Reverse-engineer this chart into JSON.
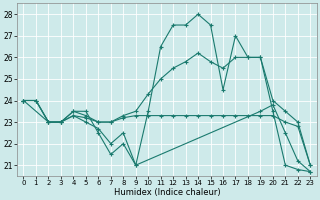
{
  "title": "",
  "xlabel": "Humidex (Indice chaleur)",
  "ylabel": "",
  "bg_color": "#ceeaea",
  "line_color": "#1a7a6e",
  "grid_color": "#ffffff",
  "xlim": [
    -0.5,
    23.5
  ],
  "ylim": [
    20.5,
    28.5
  ],
  "xticks": [
    0,
    1,
    2,
    3,
    4,
    5,
    6,
    7,
    8,
    9,
    10,
    11,
    12,
    13,
    14,
    15,
    16,
    17,
    18,
    19,
    20,
    21,
    22,
    23
  ],
  "yticks": [
    21,
    22,
    23,
    24,
    25,
    26,
    27,
    28
  ],
  "series": [
    {
      "x": [
        0,
        1,
        2,
        3,
        4,
        5,
        6,
        7,
        8,
        9,
        10,
        11,
        12,
        13,
        14,
        15,
        16,
        17,
        18,
        19,
        20,
        21,
        22,
        23
      ],
      "y": [
        24.0,
        24.0,
        23.0,
        23.0,
        23.5,
        23.5,
        22.5,
        21.5,
        22.0,
        21.0,
        23.5,
        26.5,
        27.5,
        27.5,
        28.0,
        27.5,
        24.5,
        27.0,
        26.0,
        26.0,
        23.5,
        21.0,
        20.8,
        20.7
      ]
    },
    {
      "x": [
        0,
        1,
        2,
        3,
        4,
        5,
        6,
        7,
        8,
        9,
        10,
        11,
        12,
        13,
        14,
        15,
        16,
        17,
        18,
        19,
        20,
        21,
        22,
        23
      ],
      "y": [
        24.0,
        24.0,
        23.0,
        23.0,
        23.5,
        23.3,
        23.0,
        23.0,
        23.3,
        23.5,
        24.3,
        25.0,
        25.5,
        25.8,
        26.2,
        25.8,
        25.5,
        26.0,
        26.0,
        26.0,
        24.0,
        23.5,
        23.0,
        21.0
      ]
    },
    {
      "x": [
        0,
        1,
        2,
        3,
        4,
        5,
        6,
        7,
        8,
        9,
        10,
        11,
        12,
        13,
        14,
        15,
        16,
        17,
        18,
        19,
        20,
        21,
        22,
        23
      ],
      "y": [
        24.0,
        24.0,
        23.0,
        23.0,
        23.3,
        23.2,
        23.0,
        23.0,
        23.2,
        23.3,
        23.3,
        23.3,
        23.3,
        23.3,
        23.3,
        23.3,
        23.3,
        23.3,
        23.3,
        23.3,
        23.3,
        23.0,
        22.8,
        21.0
      ]
    },
    {
      "x": [
        0,
        2,
        3,
        4,
        5,
        6,
        7,
        8,
        9,
        19,
        20,
        21,
        22,
        23
      ],
      "y": [
        24.0,
        23.0,
        23.0,
        23.3,
        23.0,
        22.7,
        22.0,
        22.5,
        21.0,
        23.5,
        23.8,
        22.5,
        21.2,
        20.7
      ]
    }
  ]
}
